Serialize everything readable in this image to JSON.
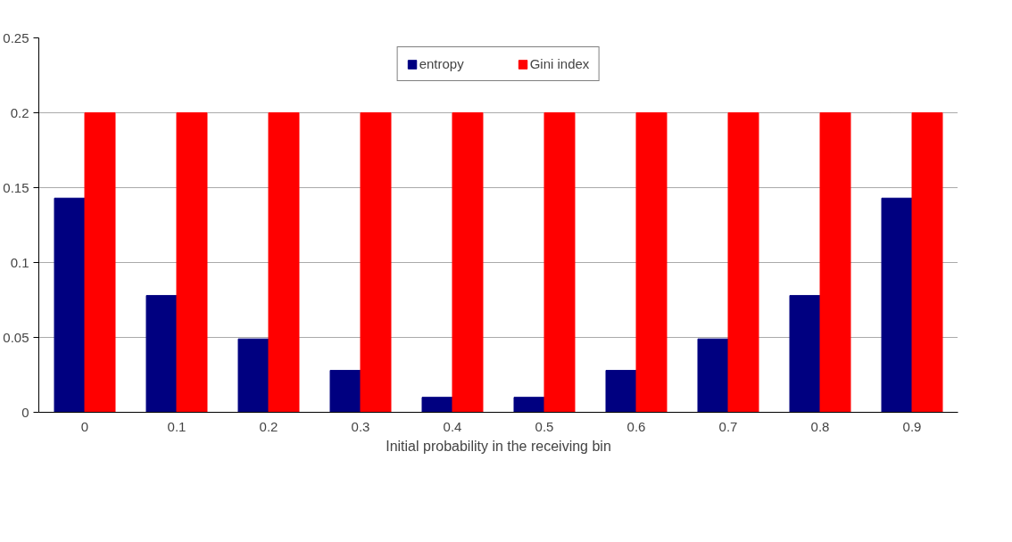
{
  "chart_data": {
    "type": "bar",
    "xlabel": "Initial probability in the receiving bin",
    "categories": [
      "0",
      "0.1",
      "0.2",
      "0.3",
      "0.4",
      "0.5",
      "0.6",
      "0.7",
      "0.8",
      "0.9"
    ],
    "series": [
      {
        "name": "entropy",
        "color": "#000080",
        "values": [
          0.143,
          0.078,
          0.049,
          0.028,
          0.01,
          0.01,
          0.028,
          0.049,
          0.078,
          0.143
        ]
      },
      {
        "name": "Gini index",
        "color": "#ff0000",
        "values": [
          0.2,
          0.2,
          0.2,
          0.2,
          0.2,
          0.2,
          0.2,
          0.2,
          0.2,
          0.2
        ]
      }
    ],
    "ylim": [
      0,
      0.25
    ],
    "yticks": [
      0,
      0.05,
      0.1,
      0.15,
      0.2,
      0.25
    ],
    "grid": "y",
    "legend": "top"
  }
}
